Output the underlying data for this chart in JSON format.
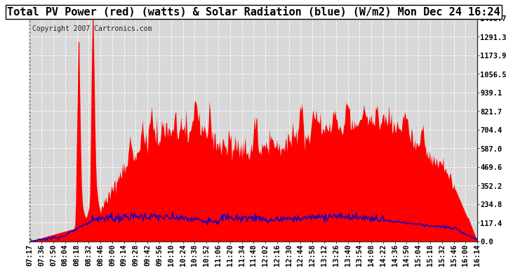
{
  "title": "Total PV Power (red) (watts) & Solar Radiation (blue) (W/m2) Mon Dec 24 16:24",
  "copyright_text": "Copyright 2007 Cartronics.com",
  "background_color": "#ffffff",
  "plot_bg_color": "#d8d8d8",
  "grid_color": "#ffffff",
  "yticks": [
    0.0,
    117.4,
    234.8,
    352.2,
    469.6,
    587.0,
    704.4,
    821.7,
    939.1,
    1056.5,
    1173.9,
    1291.3,
    1408.7
  ],
  "ymax": 1408.7,
  "ymin": 0.0,
  "x_labels": [
    "07:17",
    "07:36",
    "07:50",
    "08:04",
    "08:18",
    "08:32",
    "08:46",
    "09:00",
    "09:14",
    "09:28",
    "09:42",
    "09:56",
    "10:10",
    "10:24",
    "10:38",
    "10:52",
    "11:06",
    "11:20",
    "11:34",
    "11:48",
    "12:02",
    "12:16",
    "12:30",
    "12:44",
    "12:58",
    "13:12",
    "13:26",
    "13:40",
    "13:54",
    "14:08",
    "14:22",
    "14:36",
    "14:50",
    "15:04",
    "15:18",
    "15:32",
    "15:46",
    "16:00",
    "16:14"
  ],
  "pv_color": "#ff0000",
  "solar_color": "#0000cc",
  "title_fontsize": 11,
  "tick_fontsize": 7.5,
  "copyright_fontsize": 7,
  "right_yticks": true
}
